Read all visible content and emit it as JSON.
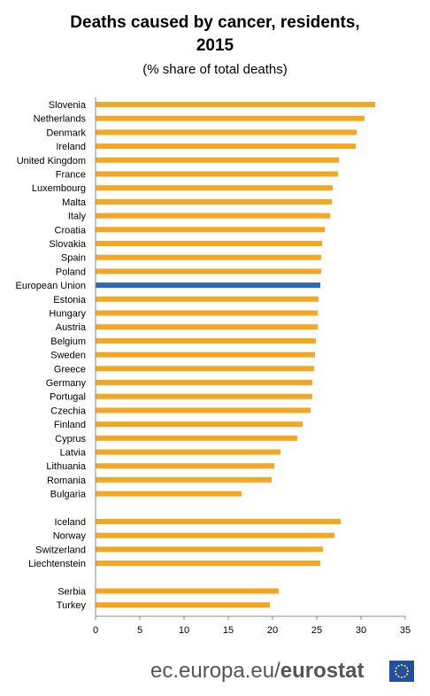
{
  "chart_data": {
    "type": "bar",
    "orientation": "horizontal",
    "title_line1": "Deaths caused by cancer, residents,",
    "title_line2": "2015",
    "subtitle": "(% share of total deaths)",
    "xlim": [
      0,
      35
    ],
    "xticks": [
      "0",
      "5",
      "10",
      "15",
      "20",
      "25",
      "30",
      "35"
    ],
    "bar_color": "#f5a623",
    "highlight_color": "#2d6ab4",
    "highlight_category": "European Union",
    "categories": [
      "Slovenia",
      "Netherlands",
      "Denmark",
      "Ireland",
      "United Kingdom",
      "France",
      "Luxembourg",
      "Malta",
      "Italy",
      "Croatia",
      "Slovakia",
      "Spain",
      "Poland",
      "European Union",
      "Estonia",
      "Hungary",
      "Austria",
      "Belgium",
      "Sweden",
      "Greece",
      "Germany",
      "Portugal",
      "Czechia",
      "Finland",
      "Cyprus",
      "Latvia",
      "Lithuania",
      "Romania",
      "Bulgaria",
      "Iceland",
      "Norway",
      "Switzerland",
      "Liechtenstein",
      "Serbia",
      "Turkey"
    ],
    "values": [
      31.6,
      30.4,
      29.5,
      29.4,
      27.5,
      27.4,
      26.8,
      26.7,
      26.5,
      25.9,
      25.6,
      25.5,
      25.5,
      25.4,
      25.2,
      25.1,
      25.1,
      24.9,
      24.8,
      24.7,
      24.5,
      24.5,
      24.3,
      23.4,
      22.8,
      20.9,
      20.2,
      19.9,
      16.5,
      27.7,
      27.0,
      25.7,
      25.4,
      20.7,
      19.7
    ],
    "groups": [
      29,
      4,
      2
    ]
  },
  "footer": {
    "site": "ec.europa.eu/",
    "brand": "eurostat"
  },
  "colors": {
    "flag_blue": "#1f4fa8",
    "flag_star": "#ffdd00",
    "axis": "#888888"
  }
}
